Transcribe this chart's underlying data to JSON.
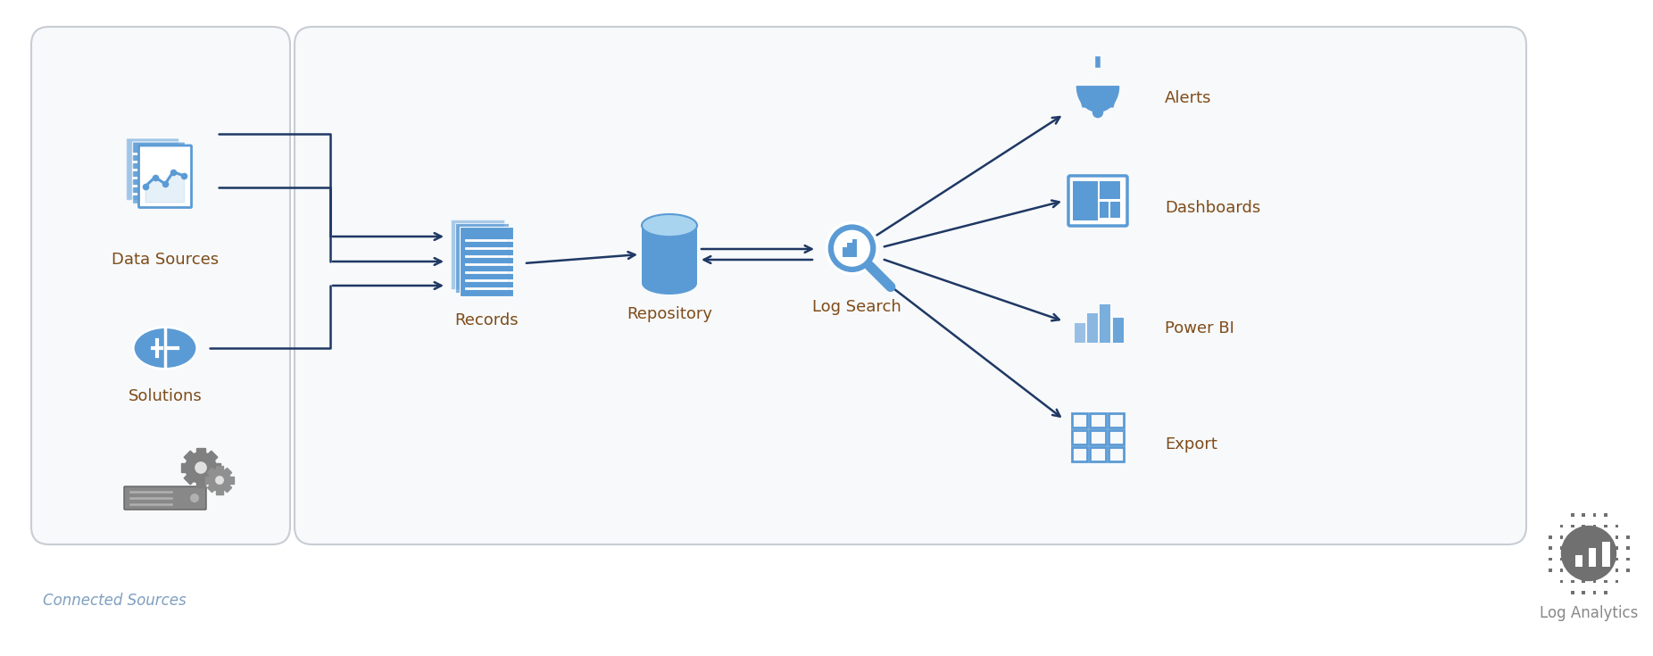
{
  "bg_color": "#ffffff",
  "box_fill": "#f7f9fb",
  "box_edge": "#c8cdd4",
  "blue": "#4472c4",
  "blue_mid": "#5b9bd5",
  "blue_light": "#92c2e4",
  "blue_dark": "#1f3864",
  "gray_icon": "#808080",
  "gray_edge": "#909090",
  "text_color": "#595959",
  "text_label_color": "#7f4c19",
  "arrow_color": "#1f3864",
  "labels": {
    "data_sources": "Data Sources",
    "solutions": "Solutions",
    "records": "Records",
    "repository": "Repository",
    "log_search": "Log Search",
    "alerts": "Alerts",
    "dashboards": "Dashboards",
    "power_bi": "Power BI",
    "export": "Export",
    "connected_sources": "Connected Sources",
    "log_analytics": "Log Analytics"
  },
  "figsize": [
    18.52,
    7.35
  ],
  "dpi": 100
}
